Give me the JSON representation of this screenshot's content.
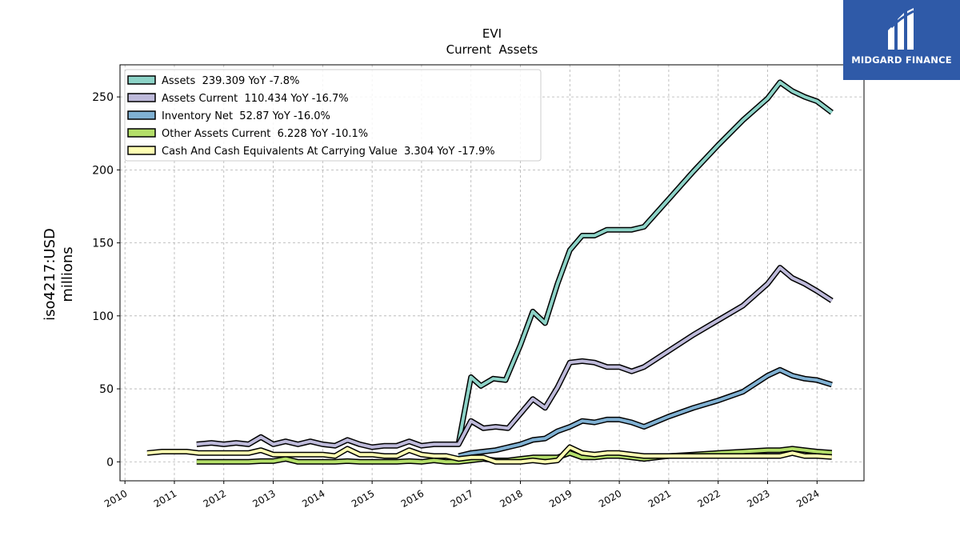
{
  "brand": {
    "name": "MIDGARD FINANCE",
    "color": "#2f5aa8"
  },
  "chart_data": {
    "type": "line",
    "title": "EVI",
    "subtitle": "Current  Assets",
    "ylabel_line1": "iso4217:USD",
    "ylabel_line2": "millions",
    "xlim": [
      2009.9,
      2024.95
    ],
    "ylim": [
      -13,
      272
    ],
    "yticks": [
      0,
      50,
      100,
      150,
      200,
      250
    ],
    "xticks": [
      2010,
      2011,
      2012,
      2013,
      2014,
      2015,
      2016,
      2017,
      2018,
      2019,
      2020,
      2021,
      2022,
      2023,
      2024
    ],
    "grid": true,
    "legend_position": "top-left",
    "series": [
      {
        "name": "Assets",
        "legend": "Assets  239.309 YoY -7.8%",
        "color": "#8dd3c7",
        "points": [
          [
            2016.75,
            13
          ],
          [
            2017.0,
            58
          ],
          [
            2017.2,
            52
          ],
          [
            2017.45,
            57
          ],
          [
            2017.7,
            56
          ],
          [
            2018.0,
            80
          ],
          [
            2018.25,
            103
          ],
          [
            2018.5,
            95
          ],
          [
            2018.75,
            122
          ],
          [
            2019.0,
            145
          ],
          [
            2019.25,
            155
          ],
          [
            2019.5,
            155
          ],
          [
            2019.75,
            159
          ],
          [
            2020.0,
            159
          ],
          [
            2020.25,
            159
          ],
          [
            2020.5,
            161
          ],
          [
            2021.0,
            180
          ],
          [
            2021.5,
            199
          ],
          [
            2022.0,
            217
          ],
          [
            2022.5,
            234
          ],
          [
            2023.0,
            249
          ],
          [
            2023.25,
            260
          ],
          [
            2023.5,
            254
          ],
          [
            2023.75,
            250
          ],
          [
            2024.0,
            247
          ],
          [
            2024.3,
            239.309
          ]
        ]
      },
      {
        "name": "Assets Current",
        "legend": "Assets Current  110.434 YoY -16.7%",
        "color": "#bebada",
        "points": [
          [
            2011.45,
            12
          ],
          [
            2011.75,
            13
          ],
          [
            2012.0,
            12
          ],
          [
            2012.25,
            13
          ],
          [
            2012.5,
            12
          ],
          [
            2012.75,
            17
          ],
          [
            2013.0,
            12
          ],
          [
            2013.25,
            14
          ],
          [
            2013.5,
            12
          ],
          [
            2013.75,
            14
          ],
          [
            2014.0,
            12
          ],
          [
            2014.25,
            11
          ],
          [
            2014.5,
            15
          ],
          [
            2014.75,
            12
          ],
          [
            2015.0,
            10
          ],
          [
            2015.25,
            11
          ],
          [
            2015.5,
            11
          ],
          [
            2015.75,
            14
          ],
          [
            2016.0,
            11
          ],
          [
            2016.25,
            12
          ],
          [
            2016.5,
            12
          ],
          [
            2016.75,
            12
          ],
          [
            2017.0,
            28
          ],
          [
            2017.25,
            23
          ],
          [
            2017.5,
            24
          ],
          [
            2017.75,
            23
          ],
          [
            2018.0,
            33
          ],
          [
            2018.25,
            43
          ],
          [
            2018.5,
            37
          ],
          [
            2018.75,
            51
          ],
          [
            2019.0,
            68
          ],
          [
            2019.25,
            69
          ],
          [
            2019.5,
            68
          ],
          [
            2019.75,
            65
          ],
          [
            2020.0,
            65
          ],
          [
            2020.25,
            62
          ],
          [
            2020.5,
            65
          ],
          [
            2021.0,
            76
          ],
          [
            2021.5,
            87
          ],
          [
            2022.0,
            97
          ],
          [
            2022.5,
            107
          ],
          [
            2023.0,
            122
          ],
          [
            2023.25,
            133
          ],
          [
            2023.5,
            126
          ],
          [
            2023.75,
            122
          ],
          [
            2024.0,
            117
          ],
          [
            2024.3,
            110.434
          ]
        ]
      },
      {
        "name": "Inventory Net",
        "legend": "Inventory Net  52.87 YoY -16.0%",
        "color": "#80b1d3",
        "points": [
          [
            2016.75,
            4
          ],
          [
            2017.0,
            6
          ],
          [
            2017.25,
            7
          ],
          [
            2017.5,
            8
          ],
          [
            2017.75,
            10
          ],
          [
            2018.0,
            12
          ],
          [
            2018.25,
            15
          ],
          [
            2018.5,
            16
          ],
          [
            2018.75,
            21
          ],
          [
            2019.0,
            24
          ],
          [
            2019.25,
            28
          ],
          [
            2019.5,
            27
          ],
          [
            2019.75,
            29
          ],
          [
            2020.0,
            29
          ],
          [
            2020.25,
            27
          ],
          [
            2020.5,
            24
          ],
          [
            2021.0,
            31
          ],
          [
            2021.5,
            37
          ],
          [
            2022.0,
            42
          ],
          [
            2022.5,
            48
          ],
          [
            2023.0,
            59
          ],
          [
            2023.25,
            63
          ],
          [
            2023.5,
            59
          ],
          [
            2023.75,
            57
          ],
          [
            2024.0,
            56
          ],
          [
            2024.3,
            52.87
          ]
        ]
      },
      {
        "name": "Other Assets Current",
        "legend": "Other Assets Current  6.228 YoY -10.1%",
        "color": "#b3de69",
        "points": [
          [
            2011.45,
            0
          ],
          [
            2011.75,
            0
          ],
          [
            2012.0,
            0
          ],
          [
            2012.25,
            0
          ],
          [
            2012.5,
            0
          ],
          [
            2012.75,
            0.5
          ],
          [
            2013.0,
            0.5
          ],
          [
            2013.25,
            2
          ],
          [
            2013.5,
            0
          ],
          [
            2013.75,
            0
          ],
          [
            2014.0,
            0
          ],
          [
            2014.25,
            0
          ],
          [
            2014.5,
            0.5
          ],
          [
            2014.75,
            0
          ],
          [
            2015.0,
            0
          ],
          [
            2015.25,
            0
          ],
          [
            2015.5,
            0
          ],
          [
            2015.75,
            0.5
          ],
          [
            2016.0,
            0
          ],
          [
            2016.25,
            1
          ],
          [
            2016.5,
            0
          ],
          [
            2016.75,
            0
          ],
          [
            2017.0,
            1
          ],
          [
            2017.25,
            2
          ],
          [
            2017.5,
            1
          ],
          [
            2017.75,
            1
          ],
          [
            2018.0,
            2
          ],
          [
            2018.25,
            3
          ],
          [
            2018.5,
            3
          ],
          [
            2018.75,
            3
          ],
          [
            2019.0,
            6
          ],
          [
            2019.25,
            3
          ],
          [
            2019.5,
            3
          ],
          [
            2019.75,
            4
          ],
          [
            2020.0,
            4
          ],
          [
            2020.25,
            3
          ],
          [
            2020.5,
            2
          ],
          [
            2021.0,
            4
          ],
          [
            2021.5,
            5
          ],
          [
            2022.0,
            6
          ],
          [
            2022.5,
            7
          ],
          [
            2023.0,
            8
          ],
          [
            2023.25,
            8
          ],
          [
            2023.5,
            9
          ],
          [
            2023.75,
            8
          ],
          [
            2024.0,
            7
          ],
          [
            2024.3,
            6.228
          ]
        ]
      },
      {
        "name": "Cash And Cash Equivalents At Carrying Value",
        "legend": "Cash And Cash Equivalents At Carrying Value  3.304 YoY -17.9%",
        "color": "#ffffb3",
        "points": [
          [
            2010.45,
            6
          ],
          [
            2010.75,
            7
          ],
          [
            2011.0,
            7
          ],
          [
            2011.25,
            7
          ],
          [
            2011.5,
            6
          ],
          [
            2011.75,
            6
          ],
          [
            2012.0,
            6
          ],
          [
            2012.25,
            6
          ],
          [
            2012.5,
            6
          ],
          [
            2012.75,
            8
          ],
          [
            2013.0,
            5
          ],
          [
            2013.25,
            5
          ],
          [
            2013.5,
            5
          ],
          [
            2013.75,
            5
          ],
          [
            2014.0,
            5
          ],
          [
            2014.25,
            4
          ],
          [
            2014.5,
            9
          ],
          [
            2014.75,
            5
          ],
          [
            2015.0,
            5
          ],
          [
            2015.25,
            4
          ],
          [
            2015.5,
            4
          ],
          [
            2015.75,
            8
          ],
          [
            2016.0,
            5
          ],
          [
            2016.25,
            4
          ],
          [
            2016.5,
            4
          ],
          [
            2016.75,
            2
          ],
          [
            2017.0,
            3
          ],
          [
            2017.25,
            3
          ],
          [
            2017.5,
            0
          ],
          [
            2017.75,
            0
          ],
          [
            2018.0,
            0
          ],
          [
            2018.25,
            1
          ],
          [
            2018.5,
            0
          ],
          [
            2018.75,
            1
          ],
          [
            2019.0,
            10
          ],
          [
            2019.25,
            6
          ],
          [
            2019.5,
            5
          ],
          [
            2019.75,
            6
          ],
          [
            2020.0,
            6
          ],
          [
            2020.25,
            5
          ],
          [
            2020.5,
            4
          ],
          [
            2021.0,
            4
          ],
          [
            2021.5,
            4
          ],
          [
            2022.0,
            4
          ],
          [
            2022.5,
            4
          ],
          [
            2023.0,
            4
          ],
          [
            2023.25,
            4
          ],
          [
            2023.5,
            6
          ],
          [
            2023.75,
            4
          ],
          [
            2024.0,
            4
          ],
          [
            2024.3,
            3.304
          ]
        ]
      }
    ]
  }
}
